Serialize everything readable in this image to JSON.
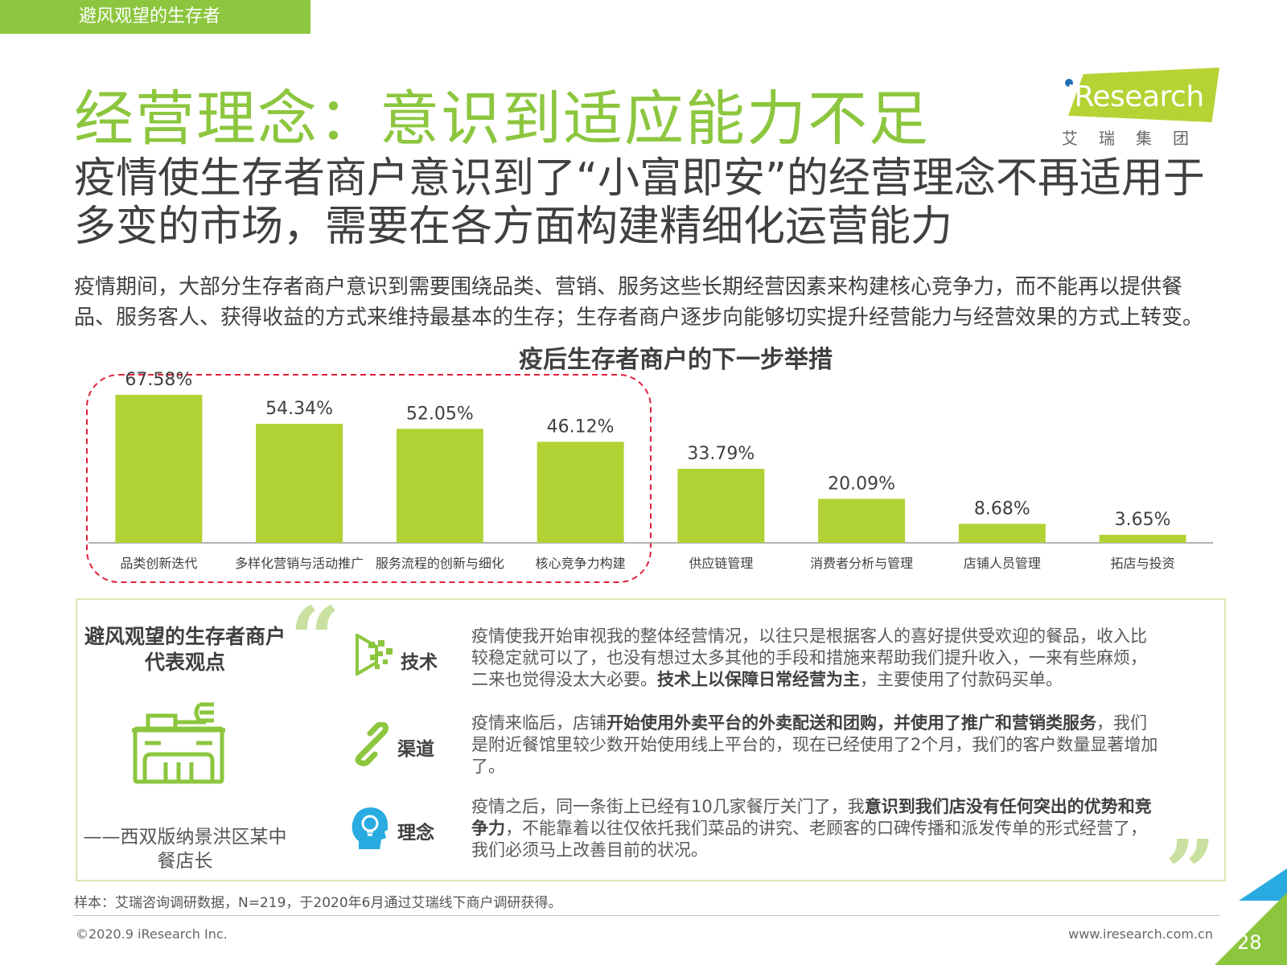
{
  "section_tab": "避风观望的生存者",
  "title": "经营理念：意识到适应能力不足",
  "logo": {
    "text": "iResearch",
    "sub": "艾瑞集团"
  },
  "subtitle": "疫情使生存者商户意识到了“小富即安”的经营理念不再适用于多变的市场，需要在各方面构建精细化运营能力",
  "description": "疫情期间，大部分生存者商户意识到需要围绕品类、营销、服务这些长期经营因素来构建核心竞争力，而不能再以提供餐品、服务客人、获得收益的方式来维持最基本的生存；生存者商户逐步向能够切实提升经营能力与经营效果的方式上转变。",
  "chart_data": {
    "type": "bar",
    "title": "疫后生存者商户的下一步举措",
    "categories": [
      "品类创新迭代",
      "多样化营销与活动推广",
      "服务流程的创新与细化",
      "核心竞争力构建",
      "供应链管理",
      "消费者分析与管理",
      "店铺人员管理",
      "拓店与投资"
    ],
    "values": [
      67.58,
      54.34,
      52.05,
      46.12,
      33.79,
      20.09,
      8.68,
      3.65
    ],
    "value_labels": [
      "67.58%",
      "54.34%",
      "52.05%",
      "46.12%",
      "33.79%",
      "20.09%",
      "8.68%",
      "3.65%"
    ],
    "ylim": [
      0,
      70
    ],
    "highlighted_count": 4,
    "bar_color": "#b1d235",
    "highlight_border_color": "#e0213c",
    "grid": false,
    "legend": "none"
  },
  "quote_section": {
    "title": "避风观望的生存者商户代表观点",
    "speaker": "——西双版纳景洪区某中餐店长",
    "open_mark": "“",
    "close_mark": "”",
    "items": [
      {
        "label": "技术",
        "icon": "technology-icon"
      },
      {
        "label": "渠道",
        "icon": "chain-link-icon"
      },
      {
        "label": "理念",
        "icon": "head-idea-icon"
      }
    ],
    "tech": {
      "text1": "疫情使我开始审视我的整体经营情况，以往只是根据客人的喜好提供受欢迎的餐品，收入比较稳定就可以了，也没有想过太多其他的手段和措施来帮助我们提升收入，一来有些麻烦，二来也觉得没太大必要。",
      "bold": "技术上以保障日常经营为主",
      "text2": "，主要使用了付款码买单。"
    },
    "channel": {
      "text1": "疫情来临后，店铺",
      "bold": "开始使用外卖平台的外卖配送和团购，并使用了推广和营销类服务",
      "text2": "，我们是附近餐馆里较少数开始使用线上平台的，现在已经使用了2个月，我们的客户数量显著增加了。"
    },
    "idea": {
      "text1": "疫情之后，同一条街上已经有10几家餐厅关门了，我",
      "bold": "意识到我们店没有任何突出的优势和竞争力",
      "text2": "，不能靠着以往仅依托我们菜品的讲究、老顾客的口碑传播和派发传单的形式经营了，我们必须马上改善目前的状况。"
    }
  },
  "sample_note": "样本：艾瑞咨询调研数据，N=219，于2020年6月通过艾瑞线下商户调研获得。",
  "copyright": "©2020.9 iResearch Inc.",
  "website": "www.iresearch.com.cn",
  "page_number": "28"
}
